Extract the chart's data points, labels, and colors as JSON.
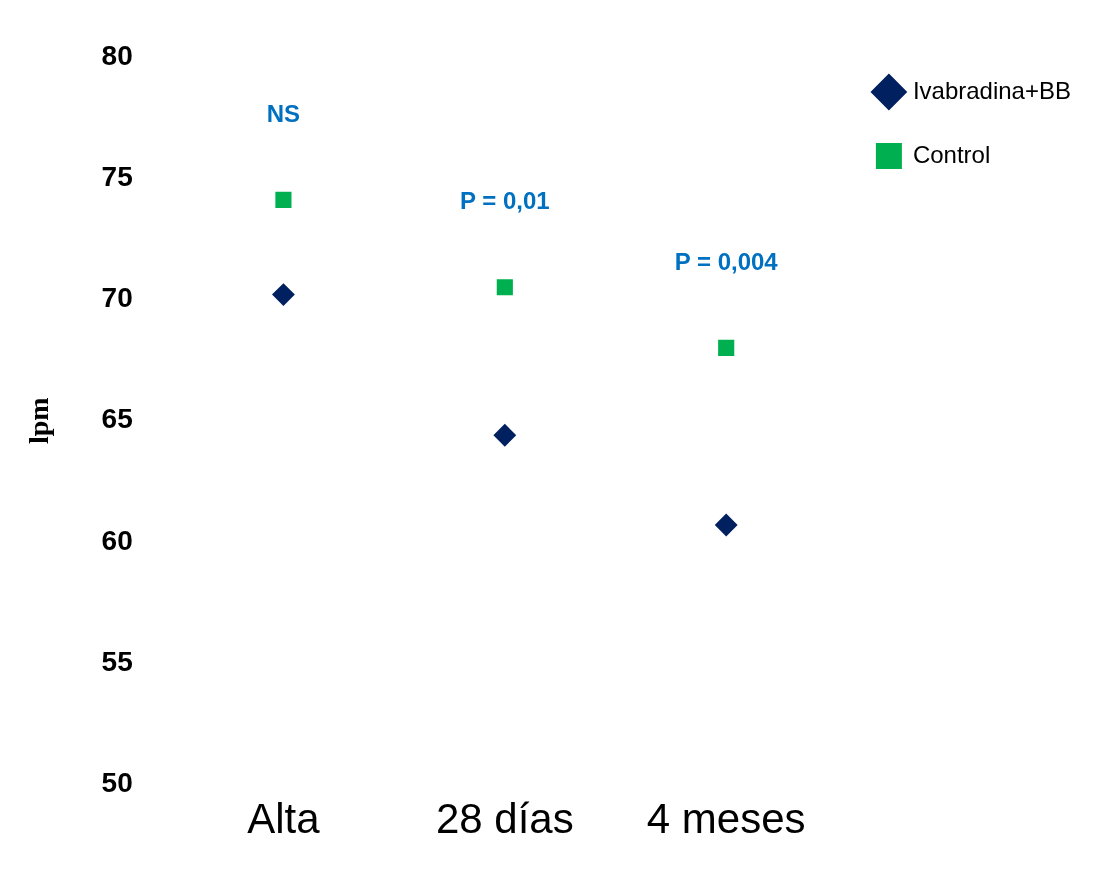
{
  "chart_data": {
    "type": "scatter",
    "ylabel": "lpm",
    "categories": [
      "Alta",
      "28 días",
      "4 meses"
    ],
    "series": [
      {
        "name": "Ivabradina+BB",
        "color": "#002060",
        "marker": "diamond",
        "values": [
          70.2,
          64.4,
          60.7
        ]
      },
      {
        "name": "Control",
        "color": "#00b050",
        "marker": "square",
        "values": [
          74.1,
          70.5,
          68.0
        ]
      }
    ],
    "ylim": [
      50,
      80
    ],
    "yticks": [
      50,
      55,
      60,
      65,
      70,
      75,
      80
    ],
    "grid": false,
    "legend": "top right",
    "annotations": [
      "NS",
      "P = 0,01",
      "P = 0,004"
    ]
  }
}
